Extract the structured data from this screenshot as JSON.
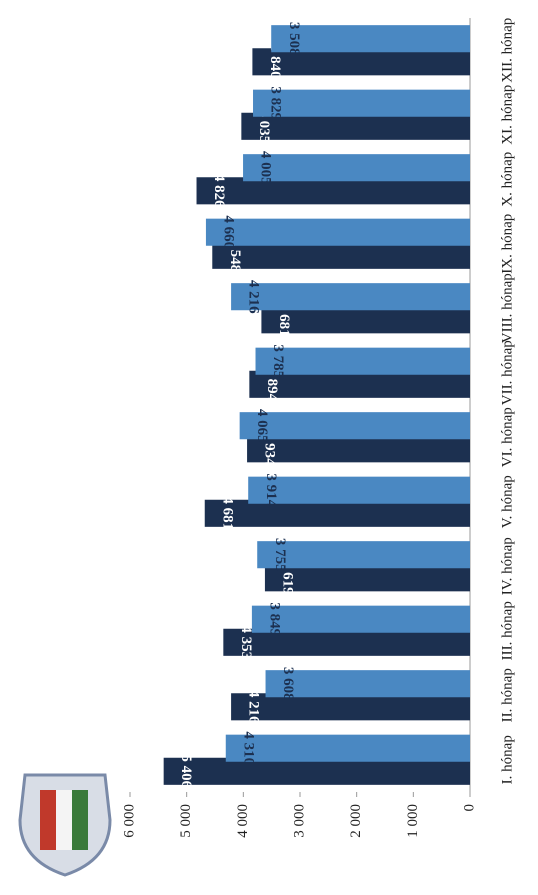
{
  "chart_data": {
    "type": "bar",
    "categories": [
      "I. hónap",
      "II. hónap",
      "III. hónap",
      "IV. hónap",
      "V. hónap",
      "VI. hónap",
      "VII. hónap",
      "VIII. hónap",
      "IX. hónap",
      "X. hónap",
      "XI. hónap",
      "XII. hónap"
    ],
    "series": [
      {
        "color": "#1c3050",
        "values": [
          5406,
          4216,
          4353,
          3619,
          4681,
          3934,
          3894,
          3681,
          4548,
          4826,
          4035,
          3840
        ],
        "value_labels": [
          "5 406",
          "4 216",
          "4 353",
          "3 619",
          "4 681",
          "3 934",
          "3 894",
          "3 681",
          "4 548",
          "4 826",
          "4 035",
          "3 840"
        ]
      },
      {
        "color": "#4a88c2",
        "values": [
          4310,
          3608,
          3849,
          3755,
          3914,
          4065,
          3785,
          4216,
          4660,
          4005,
          3829,
          3508
        ],
        "value_labels": [
          "4 310",
          "3 608",
          "3 849",
          "3 755",
          "3 914",
          "4 065",
          "3 785",
          "4 216",
          "4 660",
          "4 005",
          "3 829",
          "3 508"
        ]
      }
    ],
    "ylim": [
      0,
      6000
    ],
    "yticks": [
      0,
      {
        "value": 1000,
        "label": "1 000"
      },
      {
        "value": 2000,
        "label": "2 000"
      },
      {
        "value": 3000,
        "label": "3 000"
      },
      {
        "value": 4000,
        "label": "4 000"
      },
      {
        "value": 5000,
        "label": "5 000"
      },
      {
        "value": 6000,
        "label": "6 000"
      }
    ]
  }
}
